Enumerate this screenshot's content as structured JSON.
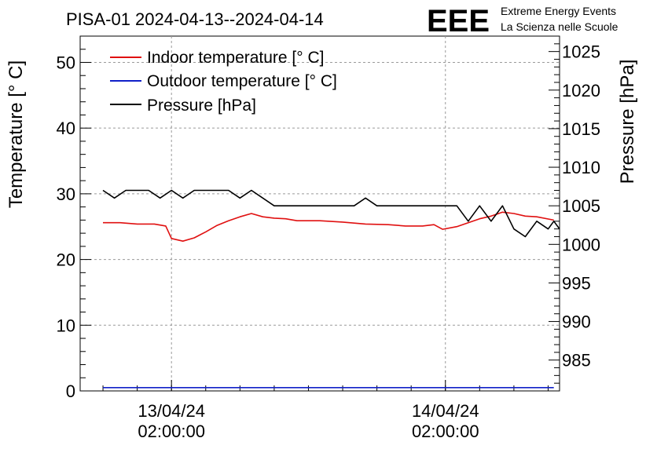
{
  "header": {
    "title": "PISA-01 2024-04-13--2024-04-14",
    "logo_text": "EEE",
    "logo_line1": "Extreme Energy Events",
    "logo_line2": "La Scienza nelle Scuole"
  },
  "colors": {
    "indoor": "#e01010",
    "outdoor": "#1020c8",
    "pressure": "#000000",
    "logo": "#1414e6",
    "grid": "#9a9a9a"
  },
  "chart_data": {
    "type": "line",
    "title": "PISA-01 2024-04-13--2024-04-14",
    "x_axis": {
      "type": "time",
      "range": [
        "2024-04-12 18:00",
        "2024-04-14 12:00"
      ],
      "tick_labels": [
        {
          "x": "2024-04-13 02:00",
          "line1": "13/04/24",
          "line2": "02:00:00"
        },
        {
          "x": "2024-04-14 02:00",
          "line1": "14/04/24",
          "line2": "02:00:00"
        }
      ]
    },
    "y_left": {
      "label": "Temperature [° C]",
      "range": [
        0,
        54
      ],
      "ticks": [
        0,
        10,
        20,
        30,
        40,
        50
      ]
    },
    "y_right": {
      "label": "Pressure [hPa]",
      "range": [
        981,
        1027
      ],
      "ticks": [
        985,
        990,
        995,
        1000,
        1005,
        1010,
        1015,
        1020,
        1025
      ]
    },
    "grid": true,
    "legend": {
      "position": "top-left"
    },
    "series": [
      {
        "name": "Indoor temperature [° C]",
        "axis": "left",
        "color": "#e01010",
        "points": [
          [
            "2024-04-12 20:00",
            25.6
          ],
          [
            "2024-04-12 21:30",
            25.6
          ],
          [
            "2024-04-12 23:00",
            25.4
          ],
          [
            "2024-04-13 00:30",
            25.4
          ],
          [
            "2024-04-13 01:30",
            25.1
          ],
          [
            "2024-04-13 02:00",
            23.2
          ],
          [
            "2024-04-13 03:00",
            22.8
          ],
          [
            "2024-04-13 04:00",
            23.3
          ],
          [
            "2024-04-13 05:00",
            24.2
          ],
          [
            "2024-04-13 06:00",
            25.2
          ],
          [
            "2024-04-13 07:00",
            25.9
          ],
          [
            "2024-04-13 08:00",
            26.5
          ],
          [
            "2024-04-13 09:00",
            27.0
          ],
          [
            "2024-04-13 10:00",
            26.5
          ],
          [
            "2024-04-13 11:00",
            26.3
          ],
          [
            "2024-04-13 12:00",
            26.2
          ],
          [
            "2024-04-13 13:00",
            25.9
          ],
          [
            "2024-04-13 15:00",
            25.9
          ],
          [
            "2024-04-13 17:00",
            25.7
          ],
          [
            "2024-04-13 19:00",
            25.4
          ],
          [
            "2024-04-13 21:00",
            25.3
          ],
          [
            "2024-04-13 22:30",
            25.1
          ],
          [
            "2024-04-14 00:00",
            25.1
          ],
          [
            "2024-04-14 01:00",
            25.3
          ],
          [
            "2024-04-14 01:45",
            24.6
          ],
          [
            "2024-04-14 03:00",
            25.0
          ],
          [
            "2024-04-14 04:00",
            25.6
          ],
          [
            "2024-04-14 05:00",
            26.2
          ],
          [
            "2024-04-14 06:00",
            26.6
          ],
          [
            "2024-04-14 07:00",
            27.2
          ],
          [
            "2024-04-14 08:00",
            27.0
          ],
          [
            "2024-04-14 09:00",
            26.6
          ],
          [
            "2024-04-14 10:00",
            26.5
          ],
          [
            "2024-04-14 11:30",
            26.0
          ]
        ]
      },
      {
        "name": "Outdoor temperature [° C]",
        "axis": "left",
        "color": "#1020c8",
        "points": [
          [
            "2024-04-12 20:00",
            0.5
          ],
          [
            "2024-04-14 11:30",
            0.5
          ]
        ]
      },
      {
        "name": "Pressure [hPa]",
        "axis": "right",
        "color": "#000000",
        "points": [
          [
            "2024-04-12 20:00",
            1007.0
          ],
          [
            "2024-04-12 21:00",
            1006.0
          ],
          [
            "2024-04-12 22:00",
            1007.0
          ],
          [
            "2024-04-13 00:00",
            1007.0
          ],
          [
            "2024-04-13 01:00",
            1006.0
          ],
          [
            "2024-04-13 02:00",
            1007.0
          ],
          [
            "2024-04-13 03:00",
            1006.0
          ],
          [
            "2024-04-13 04:00",
            1007.0
          ],
          [
            "2024-04-13 07:00",
            1007.0
          ],
          [
            "2024-04-13 08:00",
            1006.0
          ],
          [
            "2024-04-13 09:00",
            1007.0
          ],
          [
            "2024-04-13 10:00",
            1006.0
          ],
          [
            "2024-04-13 11:00",
            1005.0
          ],
          [
            "2024-04-13 18:00",
            1005.0
          ],
          [
            "2024-04-13 19:00",
            1006.0
          ],
          [
            "2024-04-13 20:00",
            1005.0
          ],
          [
            "2024-04-14 03:00",
            1005.0
          ],
          [
            "2024-04-14 04:00",
            1003.0
          ],
          [
            "2024-04-14 05:00",
            1005.0
          ],
          [
            "2024-04-14 06:00",
            1003.0
          ],
          [
            "2024-04-14 07:00",
            1005.0
          ],
          [
            "2024-04-14 08:00",
            1002.0
          ],
          [
            "2024-04-14 09:00",
            1001.0
          ],
          [
            "2024-04-14 10:00",
            1003.0
          ],
          [
            "2024-04-14 11:00",
            1002.0
          ],
          [
            "2024-04-14 11:30",
            1003.0
          ],
          [
            "2024-04-14 12:00",
            1002.0
          ]
        ]
      }
    ]
  }
}
